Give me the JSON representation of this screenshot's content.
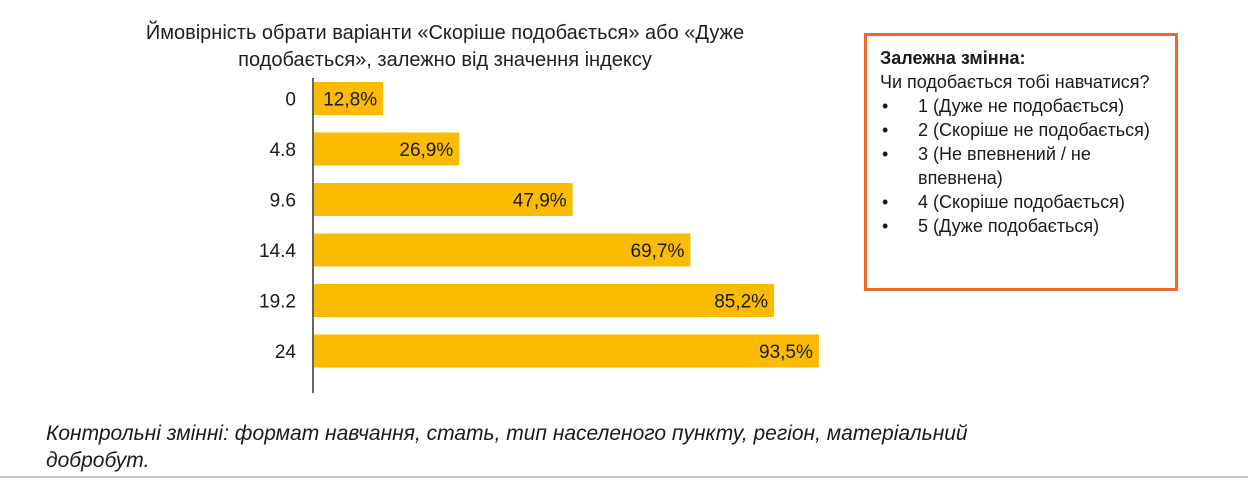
{
  "chart_data": {
    "type": "bar",
    "orientation": "horizontal",
    "title": "Ймовірність обрати варіанти «Скоріше подобається» або «Дуже подобається», залежно від значення індексу",
    "categories": [
      "0",
      "4.8",
      "9.6",
      "14.4",
      "19.2",
      "24"
    ],
    "values": [
      12.8,
      26.9,
      47.9,
      69.7,
      85.2,
      93.5
    ],
    "value_labels": [
      "12,8%",
      "26,9%",
      "47,9%",
      "69,7%",
      "85,2%",
      "93,5%"
    ],
    "xlim": [
      0,
      100
    ],
    "bar_color": "#fbbb00",
    "grid": false
  },
  "legend_box": {
    "title": "Залежна змінна:",
    "question": "Чи подобається тобі навчатися?",
    "items": [
      "1 (Дуже не подобається)",
      "2 (Скоріше не подобається)",
      "3 (Не впевнений / не впевнена)",
      "4 (Скоріше подобається)",
      "5 (Дуже подобається)"
    ],
    "border_color": "#ec6a2e"
  },
  "footnote": "Контрольні змінні: формат навчання, стать, тип населеного пункту, регіон, матеріальний добробут."
}
